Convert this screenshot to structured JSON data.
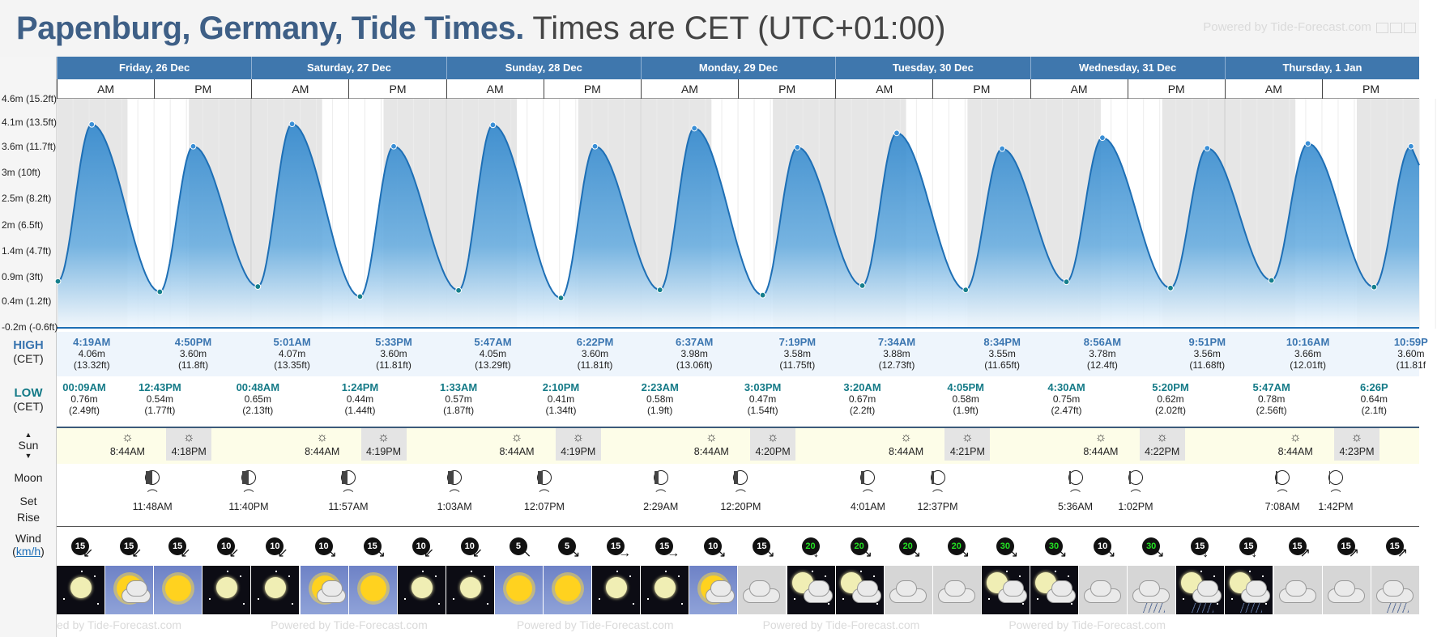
{
  "title": {
    "place": "Papenburg, Germany, Tide Times.",
    "timezone": "Times are CET (UTC+01:00)"
  },
  "powered_by": "Powered by Tide-Forecast.com",
  "powered_by_bottom": "ed by Tide-Forecast.com",
  "labels": {
    "high": "HIGH",
    "high_sub": "(CET)",
    "low": "LOW",
    "low_sub": "(CET)",
    "sun": "Sun",
    "moon": "Moon",
    "set": "Set",
    "rise": "Rise",
    "wind": "Wind",
    "wind_unit": "km/h",
    "am": "AM",
    "pm": "PM"
  },
  "days": [
    "Friday, 26 Dec",
    "Saturday, 27 Dec",
    "Sunday, 28 Dec",
    "Monday, 29 Dec",
    "Tuesday, 30 Dec",
    "Wednesday, 31 Dec",
    "Thursday, 1 Jan"
  ],
  "y_ticks": [
    "4.6m (15.2ft)",
    "4.1m (13.5ft)",
    "3.6m (11.7ft)",
    "3m (10ft)",
    "2.5m (8.2ft)",
    "2m (6.5ft)",
    "1.4m (4.7ft)",
    "0.9m (3ft)",
    "0.4m (1.2ft)",
    "-0.2m (-0.6ft)"
  ],
  "high_tides": [
    {
      "time": "4:19AM",
      "m": "4.06m",
      "ft": "(13.32ft)"
    },
    {
      "time": "4:50PM",
      "m": "3.60m",
      "ft": "(11.8ft)"
    },
    {
      "time": "5:01AM",
      "m": "4.07m",
      "ft": "(13.35ft)"
    },
    {
      "time": "5:33PM",
      "m": "3.60m",
      "ft": "(11.81ft)"
    },
    {
      "time": "5:47AM",
      "m": "4.05m",
      "ft": "(13.29ft)"
    },
    {
      "time": "6:22PM",
      "m": "3.60m",
      "ft": "(11.81ft)"
    },
    {
      "time": "6:37AM",
      "m": "3.98m",
      "ft": "(13.06ft)"
    },
    {
      "time": "7:19PM",
      "m": "3.58m",
      "ft": "(11.75ft)"
    },
    {
      "time": "7:34AM",
      "m": "3.88m",
      "ft": "(12.73ft)"
    },
    {
      "time": "8:34PM",
      "m": "3.55m",
      "ft": "(11.65ft)"
    },
    {
      "time": "8:56AM",
      "m": "3.78m",
      "ft": "(12.4ft)"
    },
    {
      "time": "9:51PM",
      "m": "3.56m",
      "ft": "(11.68ft)"
    },
    {
      "time": "10:16AM",
      "m": "3.66m",
      "ft": "(12.01ft)"
    },
    {
      "time": "10:59P",
      "m": "3.60m",
      "ft": "(11.81f"
    }
  ],
  "low_tides": [
    {
      "time": "00:09AM",
      "m": "0.76m",
      "ft": "(2.49ft)"
    },
    {
      "time": "12:43PM",
      "m": "0.54m",
      "ft": "(1.77ft)"
    },
    {
      "time": "00:48AM",
      "m": "0.65m",
      "ft": "(2.13ft)"
    },
    {
      "time": "1:24PM",
      "m": "0.44m",
      "ft": "(1.44ft)"
    },
    {
      "time": "1:33AM",
      "m": "0.57m",
      "ft": "(1.87ft)"
    },
    {
      "time": "2:10PM",
      "m": "0.41m",
      "ft": "(1.34ft)"
    },
    {
      "time": "2:23AM",
      "m": "0.58m",
      "ft": "(1.9ft)"
    },
    {
      "time": "3:03PM",
      "m": "0.47m",
      "ft": "(1.54ft)"
    },
    {
      "time": "3:20AM",
      "m": "0.67m",
      "ft": "(2.2ft)"
    },
    {
      "time": "4:05PM",
      "m": "0.58m",
      "ft": "(1.9ft)"
    },
    {
      "time": "4:30AM",
      "m": "0.75m",
      "ft": "(2.47ft)"
    },
    {
      "time": "5:20PM",
      "m": "0.62m",
      "ft": "(2.02ft)"
    },
    {
      "time": "5:47AM",
      "m": "0.78m",
      "ft": "(2.56ft)"
    },
    {
      "time": "6:26P",
      "m": "0.64m",
      "ft": "(2.1ft)"
    }
  ],
  "sun": [
    {
      "rise": "8:44AM",
      "set": "4:18PM"
    },
    {
      "rise": "8:44AM",
      "set": "4:19PM"
    },
    {
      "rise": "8:44AM",
      "set": "4:19PM"
    },
    {
      "rise": "8:44AM",
      "set": "4:20PM"
    },
    {
      "rise": "8:44AM",
      "set": "4:21PM"
    },
    {
      "rise": "8:44AM",
      "set": "4:22PM"
    },
    {
      "rise": "8:44AM",
      "set": "4:23PM"
    }
  ],
  "moon": [
    {
      "time": "11:48AM",
      "kind": "rise",
      "shade": 0.5
    },
    {
      "time": "11:40PM",
      "kind": "set",
      "shade": 0.5
    },
    {
      "time": "11:57AM",
      "kind": "rise",
      "shade": 0.45
    },
    {
      "time": "1:03AM",
      "kind": "set",
      "shade": 0.4
    },
    {
      "time": "12:07PM",
      "kind": "rise",
      "shade": 0.38
    },
    {
      "time": "2:29AM",
      "kind": "set",
      "shade": 0.32
    },
    {
      "time": "12:20PM",
      "kind": "rise",
      "shade": 0.3
    },
    {
      "time": "4:01AM",
      "kind": "set",
      "shade": 0.25
    },
    {
      "time": "12:37PM",
      "kind": "rise",
      "shade": 0.22
    },
    {
      "time": "5:36AM",
      "kind": "set",
      "shade": 0.18
    },
    {
      "time": "1:02PM",
      "kind": "rise",
      "shade": 0.15
    },
    {
      "time": "7:08AM",
      "kind": "set",
      "shade": 0.1
    },
    {
      "time": "1:42PM",
      "kind": "rise",
      "shade": 0.08
    }
  ],
  "wind": [
    {
      "speed": "15",
      "arrow": "↙",
      "color": "#111111"
    },
    {
      "speed": "15",
      "arrow": "↙",
      "color": "#111111"
    },
    {
      "speed": "15",
      "arrow": "↙",
      "color": "#111111"
    },
    {
      "speed": "10",
      "arrow": "↙",
      "color": "#111111"
    },
    {
      "speed": "10",
      "arrow": "↙",
      "color": "#111111"
    },
    {
      "speed": "10",
      "arrow": "↘",
      "color": "#111111"
    },
    {
      "speed": "15",
      "arrow": "↘",
      "color": "#111111"
    },
    {
      "speed": "10",
      "arrow": "↙",
      "color": "#111111"
    },
    {
      "speed": "10",
      "arrow": "↙",
      "color": "#111111"
    },
    {
      "speed": "5",
      "arrow": "↖",
      "color": "#111111"
    },
    {
      "speed": "5",
      "arrow": "↘",
      "color": "#111111"
    },
    {
      "speed": "15",
      "arrow": "→",
      "color": "#111111"
    },
    {
      "speed": "15",
      "arrow": "→",
      "color": "#111111"
    },
    {
      "speed": "10",
      "arrow": "↘",
      "color": "#111111"
    },
    {
      "speed": "15",
      "arrow": "↘",
      "color": "#111111"
    },
    {
      "speed": "20",
      "arrow": "↓",
      "color": "#0a7a0a"
    },
    {
      "speed": "20",
      "arrow": "↘",
      "color": "#0a7a0a"
    },
    {
      "speed": "20",
      "arrow": "↘",
      "color": "#0a7a0a"
    },
    {
      "speed": "20",
      "arrow": "↘",
      "color": "#0a7a0a"
    },
    {
      "speed": "30",
      "arrow": "↘",
      "color": "#0a7a0a"
    },
    {
      "speed": "30",
      "arrow": "↘",
      "color": "#0a7a0a"
    },
    {
      "speed": "10",
      "arrow": "↘",
      "color": "#111111"
    },
    {
      "speed": "30",
      "arrow": "↘",
      "color": "#0a7a0a"
    },
    {
      "speed": "15",
      "arrow": "↓",
      "color": "#111111"
    },
    {
      "speed": "15",
      "arrow": "↓",
      "color": "#111111"
    },
    {
      "speed": "15",
      "arrow": "↗",
      "color": "#111111"
    },
    {
      "speed": "15",
      "arrow": "↗",
      "color": "#111111"
    },
    {
      "speed": "15",
      "arrow": "↗",
      "color": "#111111"
    }
  ],
  "weather": [
    "moon-clear",
    "sun-cloud",
    "sun",
    "moon-clear",
    "moon-clear",
    "sun-cloud",
    "sun",
    "moon-clear",
    "moon-clear",
    "sun",
    "sun",
    "moon-clear",
    "moon-clear",
    "sun-cloud",
    "cloudy",
    "moon-cloud",
    "moon-cloud",
    "cloudy",
    "cloudy",
    "moon-cloud",
    "moon-cloud",
    "cloudy",
    "cloudy-rain",
    "moon-rain",
    "moon-rain",
    "cloudy",
    "cloudy",
    "cloudy-rain"
  ],
  "colors": {
    "header": "#3f77ad",
    "tide_fill": "#3b8fd0",
    "tide_line": "#1e6fb5",
    "high_text": "#3a75b0",
    "low_text": "#147a87"
  },
  "chart_data": {
    "type": "area",
    "ylabel": "",
    "ylim": [
      -0.2,
      4.6
    ],
    "x_unit": "hours from Friday 26 Dec 00:00 CET",
    "series": [
      {
        "highs": [
          [
            4.32,
            4.06
          ],
          [
            16.83,
            3.6
          ],
          [
            29.02,
            4.07
          ],
          [
            41.55,
            3.6
          ],
          [
            53.78,
            4.05
          ],
          [
            66.37,
            3.6
          ],
          [
            78.62,
            3.98
          ],
          [
            91.32,
            3.58
          ],
          [
            103.57,
            3.88
          ],
          [
            116.57,
            3.55
          ],
          [
            128.93,
            3.78
          ],
          [
            141.85,
            3.56
          ],
          [
            154.27,
            3.66
          ],
          [
            166.98,
            3.6
          ]
        ],
        "lows": [
          [
            0.15,
            0.76
          ],
          [
            12.72,
            0.54
          ],
          [
            24.8,
            0.65
          ],
          [
            37.4,
            0.44
          ],
          [
            49.55,
            0.57
          ],
          [
            62.17,
            0.41
          ],
          [
            74.38,
            0.58
          ],
          [
            87.05,
            0.47
          ],
          [
            99.33,
            0.67
          ],
          [
            112.08,
            0.58
          ],
          [
            124.5,
            0.75
          ],
          [
            137.33,
            0.62
          ],
          [
            149.78,
            0.78
          ],
          [
            162.43,
            0.64
          ]
        ]
      }
    ]
  }
}
